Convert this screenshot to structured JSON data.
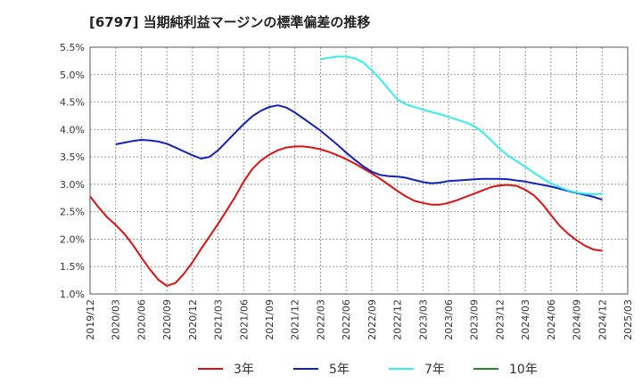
{
  "title": "[6797]  当期純利益マージンの標準偏差の推移",
  "chart_data": {
    "type": "line",
    "title": "[6797]  当期純利益マージンの標準偏差の推移",
    "xlabel": "",
    "ylabel": "",
    "ylim": [
      1.0,
      5.5
    ],
    "yticks": [
      "1.0%",
      "1.5%",
      "2.0%",
      "2.5%",
      "3.0%",
      "3.5%",
      "4.0%",
      "4.5%",
      "5.0%",
      "5.5%"
    ],
    "xticks": [
      "2019/12",
      "2020/03",
      "2020/06",
      "2020/09",
      "2020/12",
      "2021/03",
      "2021/06",
      "2021/09",
      "2021/12",
      "2022/03",
      "2022/06",
      "2022/09",
      "2022/12",
      "2023/03",
      "2023/06",
      "2023/09",
      "2023/12",
      "2024/03",
      "2024/06",
      "2024/09",
      "2024/12",
      "2025/03"
    ],
    "grid": true,
    "legend_position": "bottom",
    "colors": {
      "3年": "#dd1111",
      "5年": "#1122bb",
      "7年": "#33eeee",
      "10年": "#228822"
    },
    "series": [
      {
        "name": "3年",
        "x": [
          "2019/12",
          "2020/01",
          "2020/02",
          "2020/03",
          "2020/04",
          "2020/05",
          "2020/06",
          "2020/07",
          "2020/08",
          "2020/09",
          "2020/10",
          "2020/11",
          "2020/12",
          "2021/01",
          "2021/02",
          "2021/03",
          "2021/04",
          "2021/05",
          "2021/06",
          "2021/07",
          "2021/08",
          "2021/09",
          "2021/10",
          "2021/11",
          "2021/12",
          "2022/01",
          "2022/02",
          "2022/03",
          "2022/04",
          "2022/05",
          "2022/06",
          "2022/07",
          "2022/08",
          "2022/09",
          "2022/10",
          "2022/11",
          "2022/12",
          "2023/01",
          "2023/02",
          "2023/03",
          "2023/04",
          "2023/05",
          "2023/06",
          "2023/07",
          "2023/08",
          "2023/09",
          "2023/10",
          "2023/11",
          "2023/12",
          "2024/01",
          "2024/02",
          "2024/03",
          "2024/04",
          "2024/05",
          "2024/06",
          "2024/07",
          "2024/08",
          "2024/09",
          "2024/10",
          "2024/11",
          "2024/12"
        ],
        "values": [
          2.78,
          2.58,
          2.4,
          2.26,
          2.1,
          1.9,
          1.67,
          1.45,
          1.26,
          1.15,
          1.2,
          1.37,
          1.58,
          1.82,
          2.05,
          2.28,
          2.52,
          2.77,
          3.05,
          3.28,
          3.43,
          3.54,
          3.62,
          3.67,
          3.69,
          3.69,
          3.67,
          3.64,
          3.59,
          3.53,
          3.46,
          3.38,
          3.29,
          3.2,
          3.1,
          2.99,
          2.88,
          2.78,
          2.7,
          2.66,
          2.63,
          2.63,
          2.66,
          2.71,
          2.77,
          2.83,
          2.89,
          2.95,
          2.98,
          2.99,
          2.97,
          2.9,
          2.8,
          2.64,
          2.44,
          2.25,
          2.1,
          1.98,
          1.88,
          1.81,
          1.79
        ]
      },
      {
        "name": "5年",
        "x": [
          "2020/03",
          "2020/04",
          "2020/05",
          "2020/06",
          "2020/07",
          "2020/08",
          "2020/09",
          "2020/10",
          "2020/11",
          "2020/12",
          "2021/01",
          "2021/02",
          "2021/03",
          "2021/04",
          "2021/05",
          "2021/06",
          "2021/07",
          "2021/08",
          "2021/09",
          "2021/10",
          "2021/11",
          "2021/12",
          "2022/01",
          "2022/02",
          "2022/03",
          "2022/04",
          "2022/05",
          "2022/06",
          "2022/07",
          "2022/08",
          "2022/09",
          "2022/10",
          "2022/11",
          "2022/12",
          "2023/01",
          "2023/02",
          "2023/03",
          "2023/04",
          "2023/05",
          "2023/06",
          "2023/07",
          "2023/08",
          "2023/09",
          "2023/10",
          "2023/11",
          "2023/12",
          "2024/01",
          "2024/02",
          "2024/03",
          "2024/04",
          "2024/05",
          "2024/06",
          "2024/07",
          "2024/08",
          "2024/09",
          "2024/10",
          "2024/11",
          "2024/12"
        ],
        "values": [
          3.73,
          3.76,
          3.79,
          3.81,
          3.8,
          3.78,
          3.74,
          3.67,
          3.6,
          3.53,
          3.47,
          3.5,
          3.62,
          3.78,
          3.94,
          4.1,
          4.24,
          4.34,
          4.41,
          4.44,
          4.4,
          4.31,
          4.2,
          4.09,
          3.98,
          3.85,
          3.72,
          3.58,
          3.45,
          3.33,
          3.23,
          3.17,
          3.15,
          3.14,
          3.12,
          3.08,
          3.04,
          3.02,
          3.03,
          3.06,
          3.07,
          3.08,
          3.09,
          3.1,
          3.1,
          3.1,
          3.09,
          3.07,
          3.05,
          3.02,
          2.99,
          2.96,
          2.92,
          2.88,
          2.84,
          2.81,
          2.77,
          2.72
        ]
      },
      {
        "name": "7年",
        "x": [
          "2022/03",
          "2022/04",
          "2022/05",
          "2022/06",
          "2022/07",
          "2022/08",
          "2022/09",
          "2022/10",
          "2022/11",
          "2022/12",
          "2023/01",
          "2023/02",
          "2023/03",
          "2023/04",
          "2023/05",
          "2023/06",
          "2023/07",
          "2023/08",
          "2023/09",
          "2023/10",
          "2023/11",
          "2023/12",
          "2024/01",
          "2024/02",
          "2024/03",
          "2024/04",
          "2024/05",
          "2024/06",
          "2024/07",
          "2024/08",
          "2024/09",
          "2024/10",
          "2024/11",
          "2024/12"
        ],
        "values": [
          5.28,
          5.31,
          5.33,
          5.33,
          5.3,
          5.22,
          5.08,
          4.92,
          4.73,
          4.55,
          4.46,
          4.41,
          4.36,
          4.32,
          4.28,
          4.23,
          4.18,
          4.13,
          4.06,
          3.95,
          3.8,
          3.65,
          3.52,
          3.42,
          3.32,
          3.21,
          3.11,
          3.02,
          2.95,
          2.89,
          2.85,
          2.83,
          2.82,
          2.83
        ]
      },
      {
        "name": "10年",
        "x": [],
        "values": []
      }
    ]
  }
}
